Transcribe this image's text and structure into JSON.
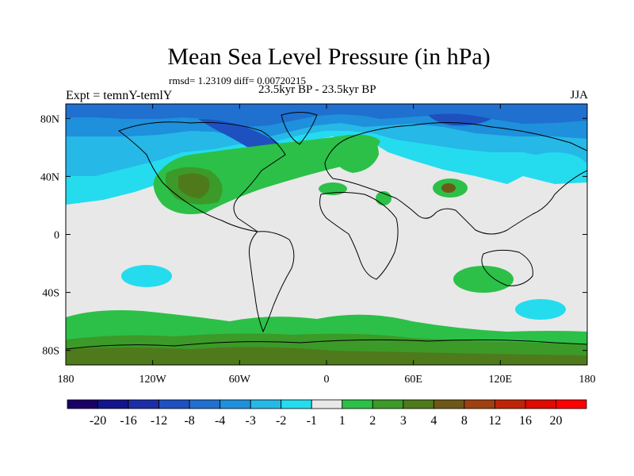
{
  "chart_data": {
    "type": "heatmap",
    "title": "Mean Sea Level Pressure (in hPa)",
    "stats_text": "rmsd= 1.23109 diff= 0.00720215",
    "period": "23.5kyr BP - 23.5kyr BP",
    "experiment": "Expt = temnY-temlY",
    "season": "JJA",
    "x_ticks": [
      "180",
      "120W",
      "60W",
      "0",
      "60E",
      "120E",
      "180"
    ],
    "x_tick_values": [
      -180,
      -120,
      -60,
      0,
      60,
      120,
      180
    ],
    "y_ticks": [
      "80N",
      "40N",
      "0",
      "40S",
      "80S"
    ],
    "y_tick_values": [
      80,
      40,
      0,
      -40,
      -80
    ],
    "xlim": [
      -180,
      180
    ],
    "ylim": [
      -90,
      90
    ],
    "colorbar": {
      "labels": [
        "-20",
        "-16",
        "-12",
        "-8",
        "-4",
        "-3",
        "-2",
        "-1",
        "1",
        "2",
        "3",
        "4",
        "8",
        "12",
        "16",
        "20"
      ],
      "colors": [
        "#1a0066",
        "#14148c",
        "#1c2ea6",
        "#1e50c0",
        "#2070d0",
        "#1e90dc",
        "#26b8e6",
        "#24dcee",
        "#e8e8e8",
        "#2cc048",
        "#3c9a28",
        "#4e7a1c",
        "#6e5818",
        "#a04010",
        "#c02408",
        "#e00a00",
        "#ff0000"
      ]
    },
    "fields": [
      {
        "region": "arctic_north_america",
        "lon": -90,
        "lat": 68,
        "value": -8
      },
      {
        "region": "north_atlantic_subpolar",
        "lon": -30,
        "lat": 60,
        "value": -4
      },
      {
        "region": "siberia",
        "lon": 90,
        "lat": 72,
        "value": -4
      },
      {
        "region": "north_pacific",
        "lon": -160,
        "lat": 50,
        "value": -3
      },
      {
        "region": "north_america_atlantic_band",
        "lon": -70,
        "lat": 38,
        "value": 2
      },
      {
        "region": "southeastern_us",
        "lon": -95,
        "lat": 35,
        "value": 4
      },
      {
        "region": "scandinavia",
        "lon": 15,
        "lat": 58,
        "value": 2
      },
      {
        "region": "tibet",
        "lon": 85,
        "lat": 33,
        "value": 4
      },
      {
        "region": "south_pacific",
        "lon": -135,
        "lat": -30,
        "value": -2
      },
      {
        "region": "australia_south",
        "lon": 115,
        "lat": -32,
        "value": 2
      },
      {
        "region": "southern_ocean_east",
        "lon": 140,
        "lat": -50,
        "value": -2
      },
      {
        "region": "southern_ocean",
        "lon": -60,
        "lat": -60,
        "value": 2
      },
      {
        "region": "antarctica",
        "lon": 0,
        "lat": -80,
        "value": 3
      }
    ]
  }
}
